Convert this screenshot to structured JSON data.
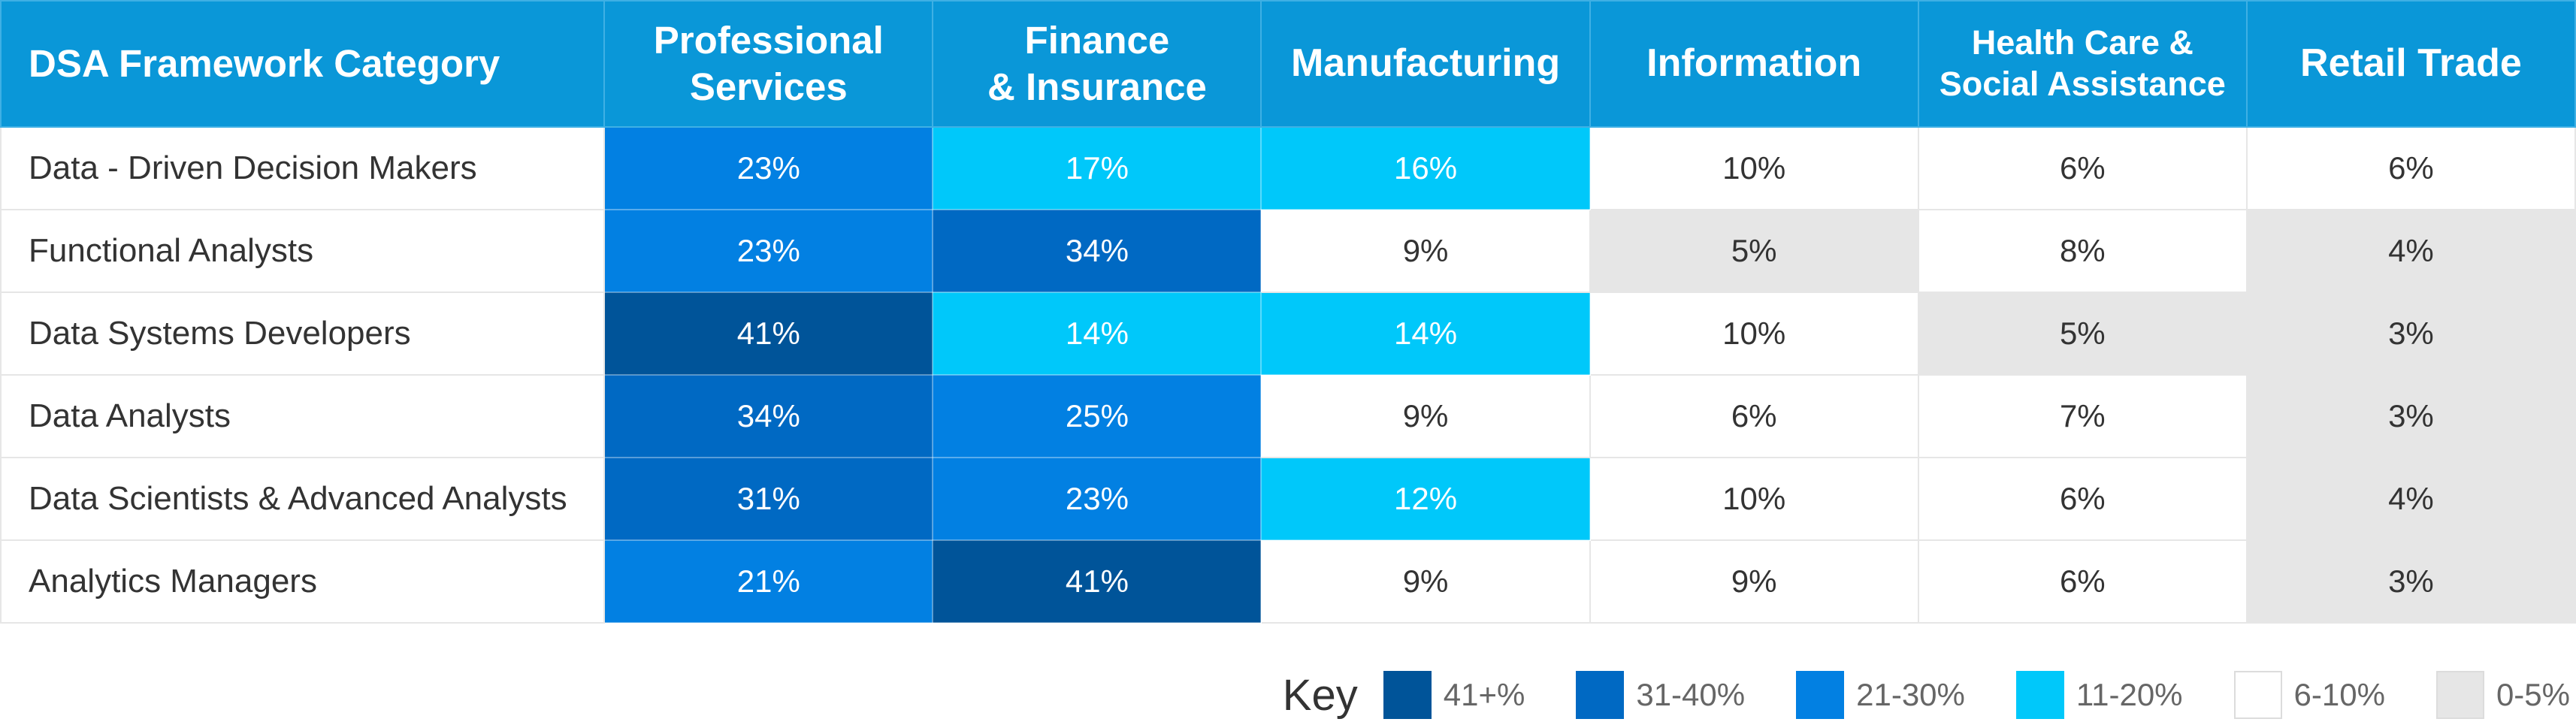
{
  "chart_data": {
    "type": "heatmap",
    "row_header": "DSA Framework Category",
    "columns": [
      {
        "line1": "Professional",
        "line2": "Services"
      },
      {
        "line1": "Finance",
        "line2": "& Insurance"
      },
      {
        "line1": "Manufacturing",
        "line2": ""
      },
      {
        "line1": "Information",
        "line2": ""
      },
      {
        "line1": "Health Care &",
        "line2": "Social Assistance"
      },
      {
        "line1": "Retail Trade",
        "line2": ""
      }
    ],
    "rows": [
      "Data - Driven Decision Makers",
      "Functional Analysts",
      "Data Systems Developers",
      "Data Analysts",
      "Data Scientists & Advanced Analysts",
      "Analytics Managers"
    ],
    "values": [
      [
        23,
        17,
        16,
        10,
        6,
        6
      ],
      [
        23,
        34,
        9,
        5,
        8,
        4
      ],
      [
        41,
        14,
        14,
        10,
        5,
        3
      ],
      [
        34,
        25,
        9,
        6,
        7,
        3
      ],
      [
        31,
        23,
        12,
        10,
        6,
        4
      ],
      [
        21,
        41,
        9,
        9,
        6,
        3
      ]
    ],
    "value_suffix": "%",
    "legend_title": "Key",
    "legend": [
      {
        "label": "41+%",
        "min": 41,
        "color": "#005499",
        "text_color": "#ffffff"
      },
      {
        "label": "31-40%",
        "min": 31,
        "color": "#0069c3",
        "text_color": "#ffffff"
      },
      {
        "label": "21-30%",
        "min": 21,
        "color": "#0280e2",
        "text_color": "#ffffff"
      },
      {
        "label": "11-20%",
        "min": 11,
        "color": "#00c8fa",
        "text_color": "#ffffff"
      },
      {
        "label": "6-10%",
        "min": 6,
        "color": "#ffffff",
        "text_color": "#333333"
      },
      {
        "label": "0-5%",
        "min": 0,
        "color": "#e6e6e6",
        "text_color": "#333333"
      }
    ]
  }
}
